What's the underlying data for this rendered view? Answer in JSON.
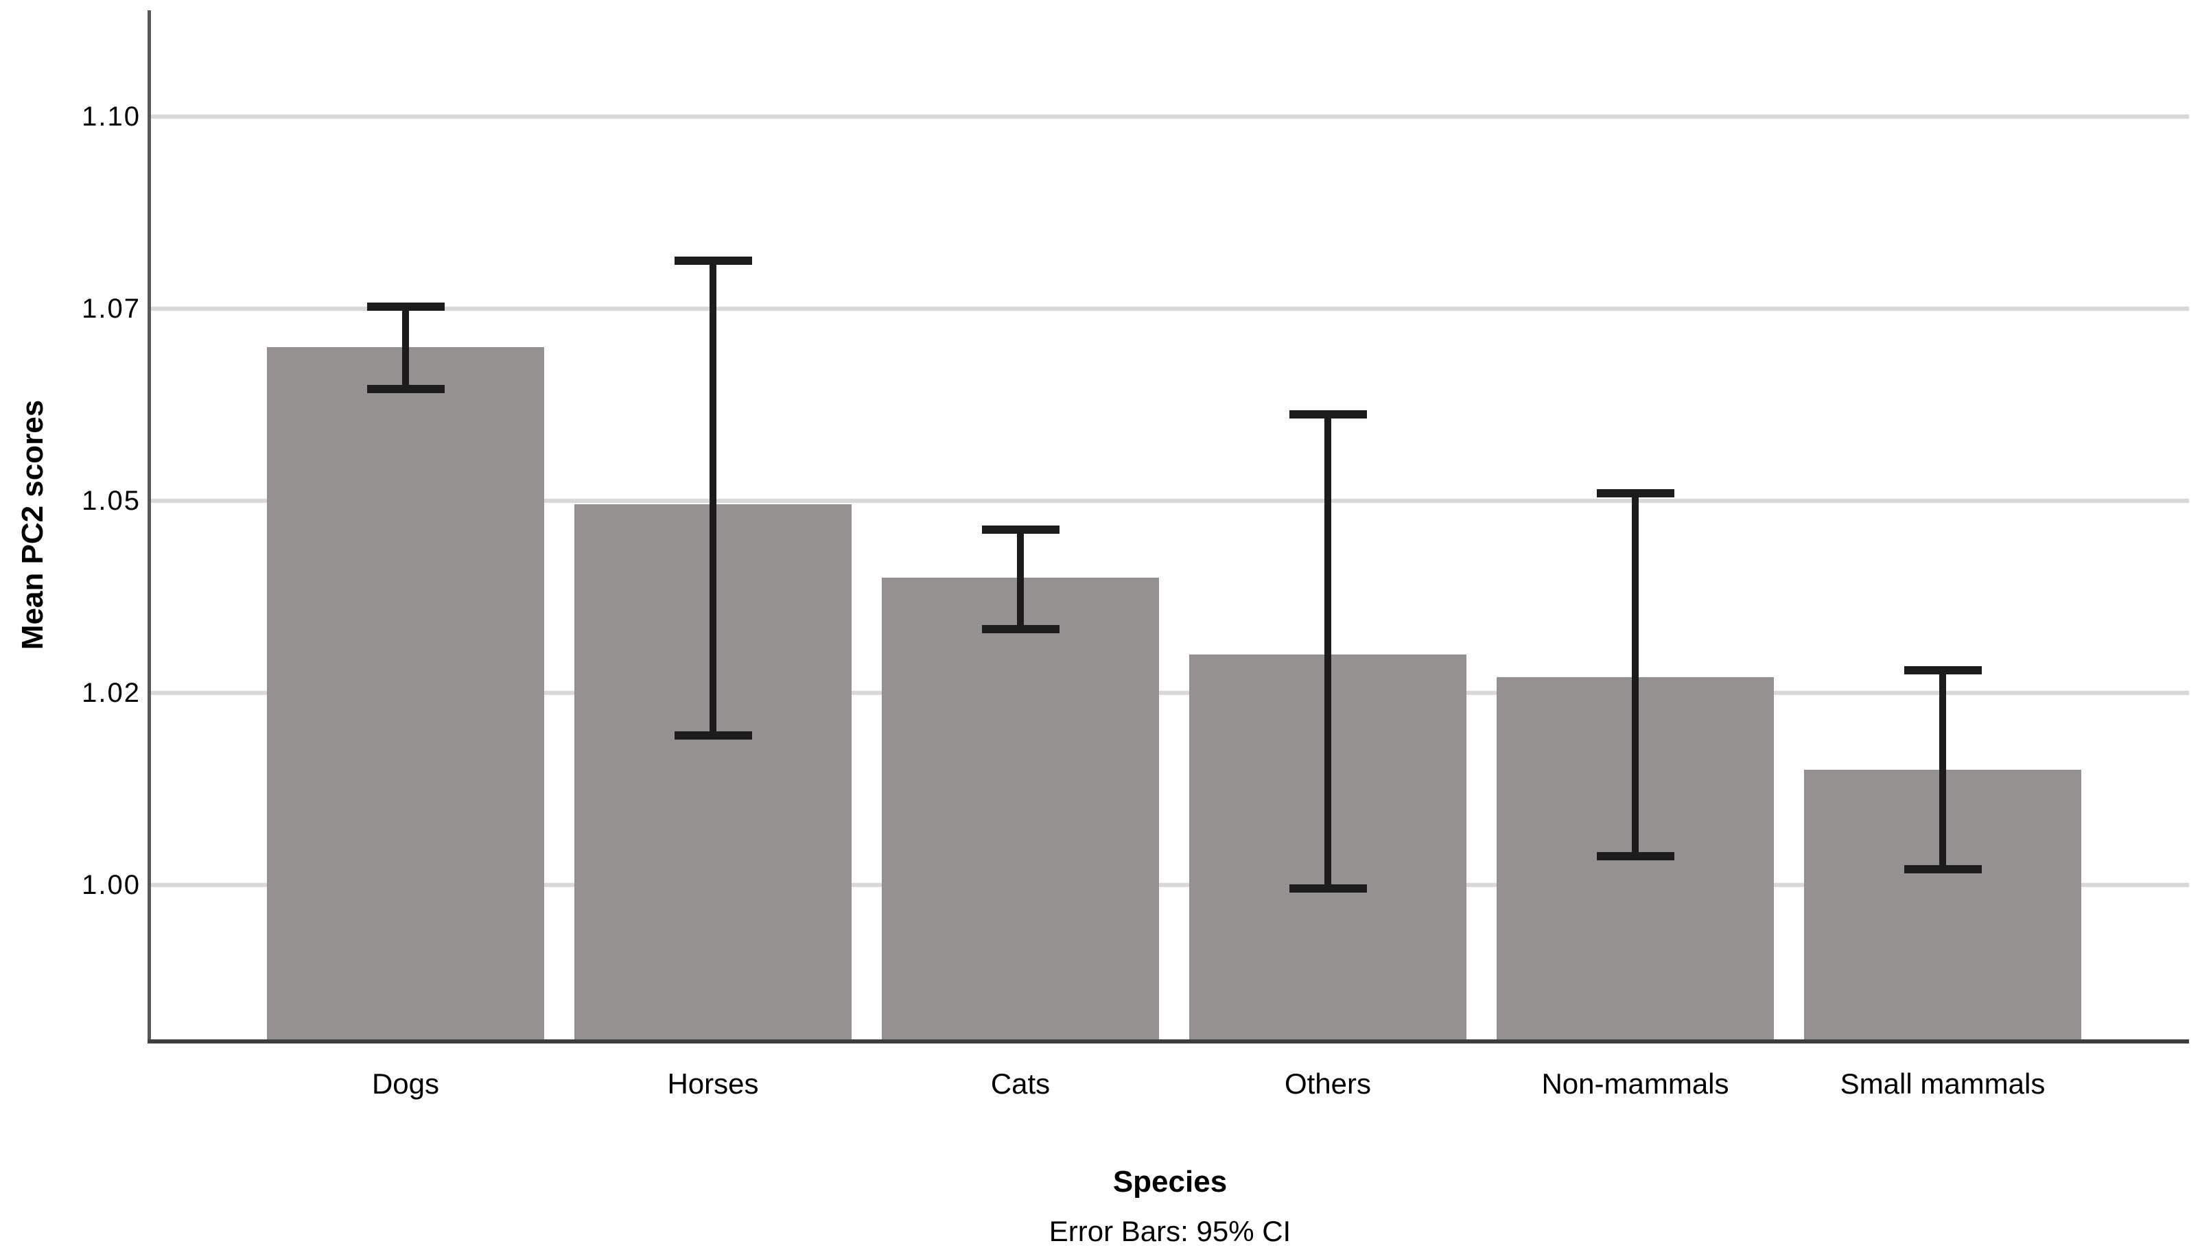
{
  "figure": {
    "background": "#ffffff",
    "text_color": "#000000"
  },
  "chart_data": {
    "type": "bar",
    "title": "",
    "categories": [
      "Dogs",
      "Horses",
      "Cats",
      "Others",
      "Non-mammals",
      "Small mammals"
    ],
    "series": [
      {
        "name": "Mean PC2 scores",
        "values": [
          1.07,
          1.0495,
          1.04,
          1.03,
          1.027,
          1.015
        ]
      }
    ],
    "error_bars": {
      "type": "95% CI",
      "low": [
        1.0645,
        1.0194,
        1.0333,
        0.9995,
        1.0037,
        1.002
      ],
      "high": [
        1.0752,
        1.0812,
        1.0462,
        1.0612,
        1.051,
        1.0279
      ]
    },
    "xlabel": "Species",
    "ylabel": "Mean PC2 scores",
    "footnote": "Error Bars: 95% CI",
    "y_ticks": [
      {
        "label": "1.00",
        "value": 1.0
      },
      {
        "label": "1.02",
        "value": 1.025
      },
      {
        "label": "1.05",
        "value": 1.05
      },
      {
        "label": "1.07",
        "value": 1.075
      },
      {
        "label": "1.10",
        "value": 1.1
      }
    ],
    "ylim": [
      0.9799,
      1.1138
    ],
    "grid": true,
    "legend": "none",
    "style": {
      "bar_color": "#959190",
      "error_bar_color": "#1c1c1c",
      "gridline_color": "#d9d9d9",
      "y_axis_color": "#595959",
      "x_axis_color": "#3e3e3e"
    }
  }
}
